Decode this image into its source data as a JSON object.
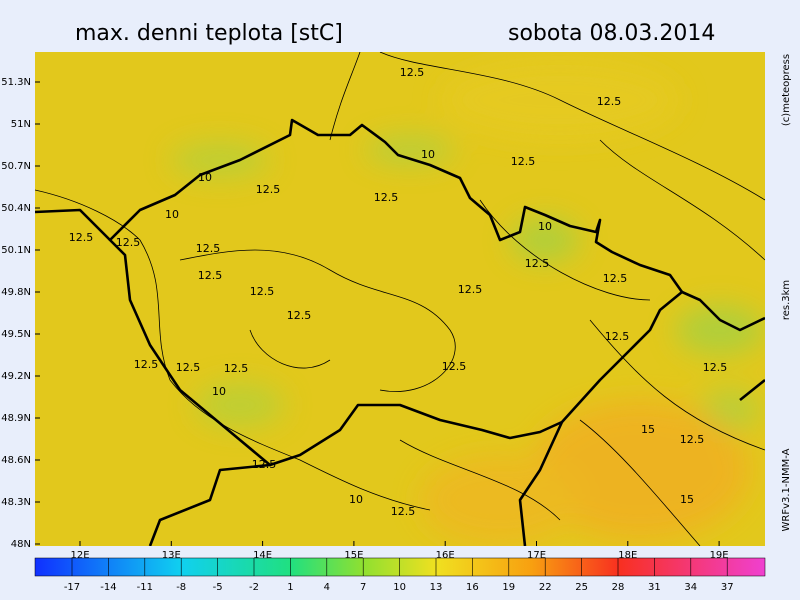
{
  "header": {
    "title": "max. denni teplota [stC]",
    "date": "sobota 08.03.2014"
  },
  "lat_labels": [
    "51.3N",
    "51N",
    "50.7N",
    "50.4N",
    "50.1N",
    "49.8N",
    "49.5N",
    "49.2N",
    "48.9N",
    "48.6N",
    "48.3N",
    "48N"
  ],
  "lon_labels": [
    "12E",
    "13E",
    "14E",
    "15E",
    "16E",
    "17E",
    "18E",
    "19E"
  ],
  "contour_labels": [
    "12.5",
    "12.5",
    "10",
    "12.5",
    "10",
    "12.5",
    "12.5",
    "10",
    "10",
    "12.5",
    "12.5",
    "12.5",
    "12.5",
    "12.5",
    "12.5",
    "12.5",
    "12.5",
    "12.5",
    "12.5",
    "12.5",
    "12.5",
    "12.5",
    "12.5",
    "12.5",
    "10",
    "15",
    "12.5",
    "12.5",
    "15",
    "10",
    "12.5"
  ],
  "side_texts": [
    "(c)meteopress",
    "res.3km",
    "WRFv3.1-NMM-A"
  ],
  "colorbar_labels": [
    -17,
    -14,
    -11,
    -8,
    -5,
    -2,
    1,
    4,
    7,
    10,
    13,
    16,
    19,
    22,
    25,
    28,
    31,
    34,
    37
  ]
}
